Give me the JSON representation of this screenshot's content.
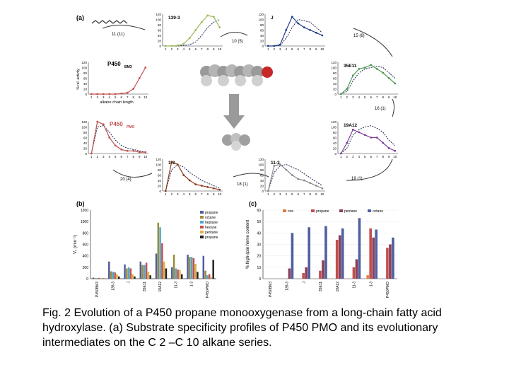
{
  "panel_a": {
    "label": "(a)",
    "wt_name": "P450",
    "wt_sub": "BM3",
    "pmo_name": "P450",
    "pmo_sub": "PMO",
    "ylabel": "% rel. activity",
    "xlabel": "alkane chain length",
    "x_ticks": [
      "1",
      "2",
      "3",
      "4",
      "5",
      "6",
      "7",
      "8",
      "9",
      "10"
    ],
    "y_ticks": [
      "0",
      "20",
      "40",
      "60",
      "80",
      "100",
      "120"
    ],
    "variants": [
      "139-3",
      "J",
      "35E11",
      "19A12",
      "11-3",
      "1-3"
    ],
    "mutation_labels": [
      "11 (11)",
      "10 (5)",
      "15 (6)",
      "16 (1)",
      "19 (1)",
      "18 (1)",
      "20 (4)"
    ]
  },
  "panel_b": {
    "label": "(b)",
    "ylabel": "V₀ (min⁻¹)",
    "y_ticks": [
      "0",
      "200",
      "400",
      "600",
      "800",
      "1000",
      "1200"
    ],
    "categories": [
      "P450BM3",
      "139-3",
      "J",
      "35E11",
      "19A12",
      "11-3",
      "1-3",
      "P450PMO"
    ],
    "legend": [
      "propane",
      "octane",
      "heptane",
      "hexane",
      "pentane",
      "propane"
    ]
  },
  "panel_c": {
    "label": "(c)",
    "ylabel": "% high-spin heme content",
    "y_ticks": [
      "0",
      "10",
      "20",
      "30",
      "40",
      "50",
      "60"
    ],
    "categories": [
      "P450BM3",
      "139-3",
      "J",
      "35E11",
      "19A12",
      "11-3",
      "1-3",
      "P450PMO"
    ],
    "legend": [
      "cne",
      "propane",
      "pentane",
      "octane"
    ]
  },
  "caption": "Fig. 2 Evolution of a P450 propane monooxygenase from a long-chain fatty acid hydroxylase. (a) Substrate specificity profiles of P450 PMO and its evolutionary intermediates on the C 2 –C 10 alkane series.",
  "colors": {
    "wt": "#c0504d",
    "v1393": "#9bbb59",
    "vJ": "#1f3d8a",
    "v35E11": "#4f9a55",
    "v19A12": "#7f3f98",
    "v113": "#8a8a8a",
    "v13": "#8a3a1a",
    "pmo": "#c0504d",
    "c_cne": "#e07b39",
    "c_propane": "#c0504d",
    "c_pentane": "#8c3f5a",
    "c_octane": "#4f5f9f"
  },
  "chart_data": [
    {
      "type": "bar",
      "title": "(b)",
      "ylabel": "V₀ (min⁻¹)",
      "ylim": [
        0,
        1200
      ],
      "categories": [
        "P450BM3",
        "139-3",
        "J",
        "35E11",
        "19A12",
        "11-3",
        "1-3",
        "P450PMO"
      ],
      "series": [
        {
          "name": "propane",
          "values": [
            20,
            300,
            250,
            300,
            440,
            200,
            420,
            400
          ]
        },
        {
          "name": "octane",
          "values": [
            10,
            130,
            180,
            240,
            980,
            420,
            380,
            140
          ]
        },
        {
          "name": "heptane",
          "values": [
            10,
            120,
            200,
            240,
            900,
            180,
            380,
            60
          ]
        },
        {
          "name": "hexane",
          "values": [
            15,
            110,
            180,
            280,
            620,
            160,
            360,
            80
          ]
        },
        {
          "name": "pentane",
          "values": [
            10,
            80,
            80,
            120,
            300,
            150,
            260,
            30
          ]
        },
        {
          "name": "propane",
          "values": [
            5,
            40,
            40,
            60,
            180,
            80,
            120,
            330
          ]
        }
      ]
    },
    {
      "type": "bar",
      "title": "(c)",
      "ylabel": "% high-spin heme content",
      "ylim": [
        0,
        60
      ],
      "categories": [
        "P450BM3",
        "139-3",
        "J",
        "35E11",
        "19A12",
        "11-3",
        "1-3",
        "P450PMO"
      ],
      "series": [
        {
          "name": "cne",
          "values": [
            0,
            0,
            0,
            0,
            0,
            0,
            3,
            0
          ]
        },
        {
          "name": "propane",
          "values": [
            0,
            0,
            5,
            7,
            34,
            10,
            44,
            27
          ]
        },
        {
          "name": "pentane",
          "values": [
            0,
            9,
            10,
            16,
            38,
            17,
            36,
            30
          ]
        },
        {
          "name": "octane",
          "values": [
            0,
            40,
            45,
            46,
            44,
            53,
            43,
            36
          ]
        }
      ]
    }
  ]
}
